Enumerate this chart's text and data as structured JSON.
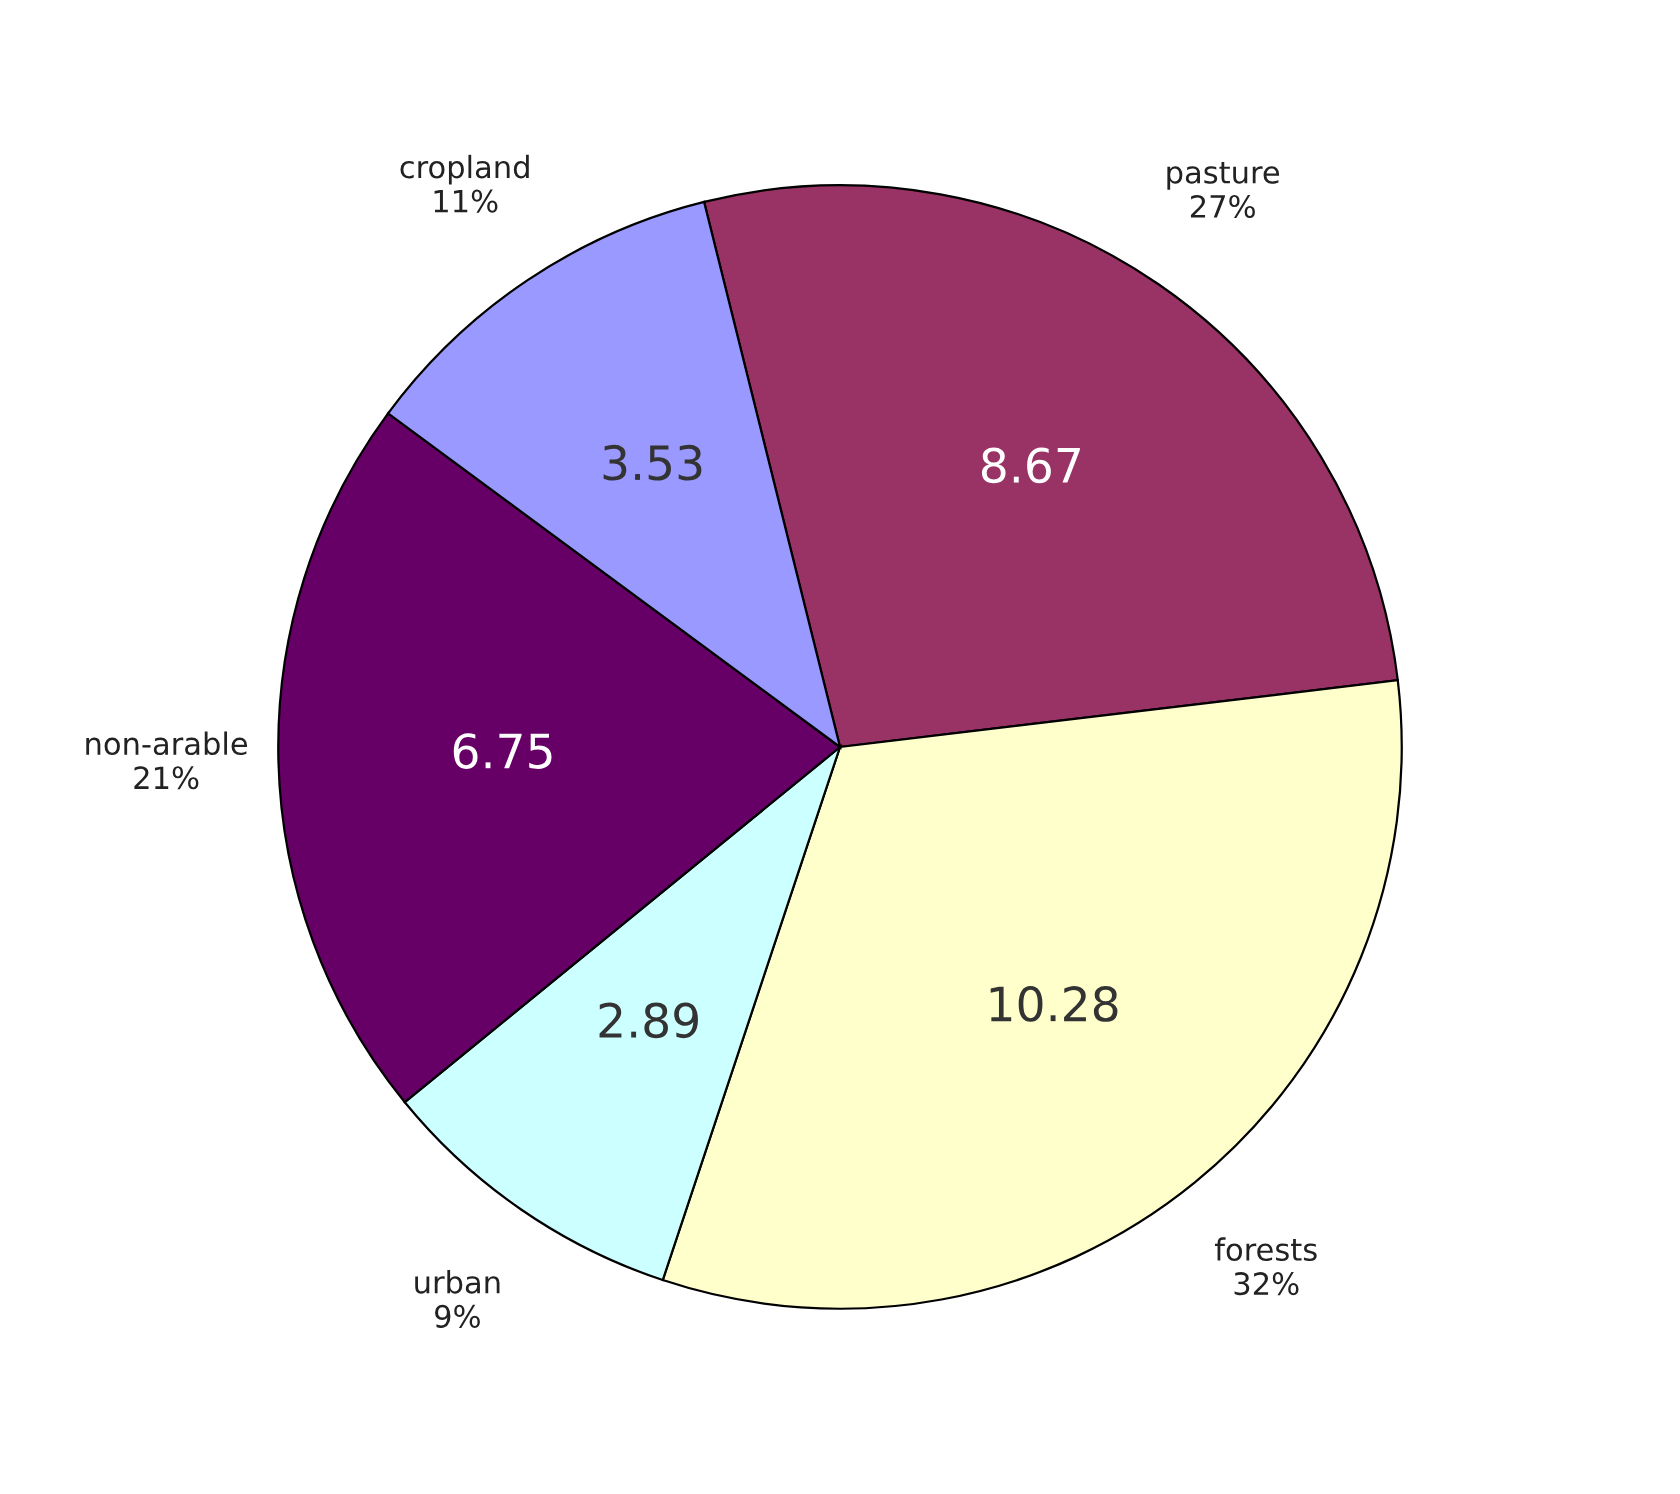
{
  "chart_data": {
    "type": "pie",
    "categories": [
      "pasture\n27%",
      "forests\n32%",
      "urban\n9%",
      "non-arable\n21%",
      "cropland\n11%"
    ],
    "values": [
      8.67,
      10.28,
      2.89,
      6.75,
      3.53
    ],
    "colors": [
      "#993366",
      "#ffffcc",
      "#ccffff",
      "#660066",
      "#9999ff"
    ],
    "data_labels": true
  }
}
